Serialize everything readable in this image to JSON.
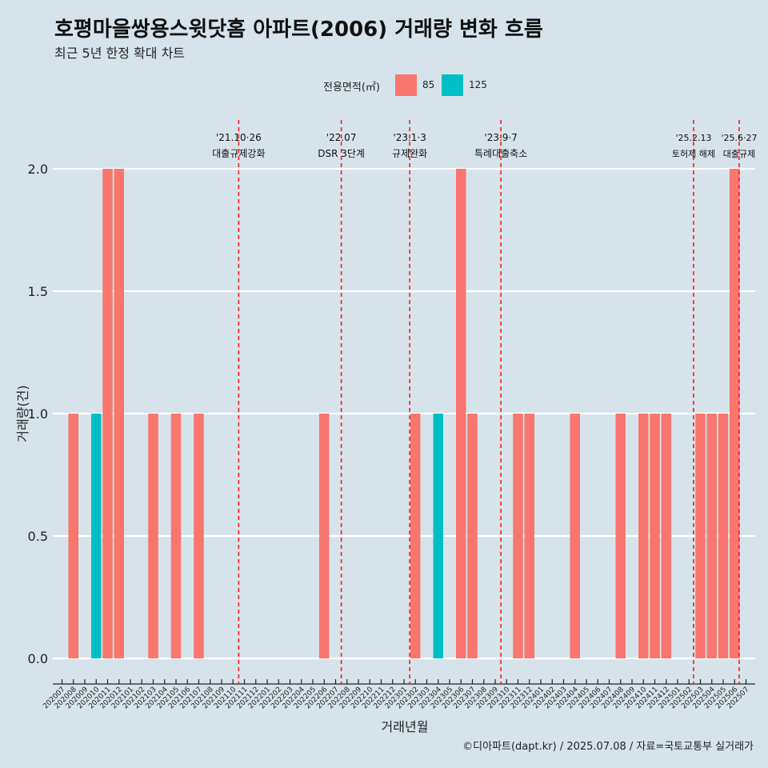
{
  "title": "호평마을쌍용스윗닷홈 아파트(2006) 거래량 변화 흐름",
  "subtitle": "최근 5년 한정 확대 차트",
  "caption": "©디아파트(dapt.kr) / 2025.07.08 / 자료=국토교통부 실거래가",
  "legend": {
    "title": "전용면적(㎡)",
    "items": [
      {
        "label": "85",
        "color": "#f8766d"
      },
      {
        "label": "125",
        "color": "#00bfc4"
      }
    ]
  },
  "chart_data": {
    "type": "bar",
    "title": "호평마을쌍용스윗닷홈 아파트(2006) 거래량 변화 흐름",
    "xlabel": "거래년월",
    "ylabel": "거래량(건)",
    "ylim": [
      0,
      2
    ],
    "yticks": [
      "0.0",
      "0.5",
      "1.0",
      "1.5",
      "2.0"
    ],
    "categories": [
      "202007",
      "202008",
      "202009",
      "202010",
      "202011",
      "202012",
      "202101",
      "202102",
      "202103",
      "202104",
      "202105",
      "202106",
      "202107",
      "202108",
      "202109",
      "202110",
      "202111",
      "202112",
      "202201",
      "202202",
      "202203",
      "202204",
      "202205",
      "202206",
      "202207",
      "202208",
      "202209",
      "202210",
      "202211",
      "202212",
      "202301",
      "202302",
      "202303",
      "202304",
      "202305",
      "202306",
      "202307",
      "202308",
      "202309",
      "202310",
      "202311",
      "202312",
      "202401",
      "202402",
      "202403",
      "202404",
      "202405",
      "202406",
      "202407",
      "202408",
      "202409",
      "202410",
      "202411",
      "202412",
      "202501",
      "202502",
      "202503",
      "202504",
      "202505",
      "202506",
      "202507"
    ],
    "bars": [
      {
        "x": "202008",
        "value": 1,
        "series": "85"
      },
      {
        "x": "202010",
        "value": 1,
        "series": "125"
      },
      {
        "x": "202011",
        "value": 2,
        "series": "85"
      },
      {
        "x": "202012",
        "value": 2,
        "series": "85"
      },
      {
        "x": "202103",
        "value": 1,
        "series": "85"
      },
      {
        "x": "202105",
        "value": 1,
        "series": "85"
      },
      {
        "x": "202107",
        "value": 1,
        "series": "85"
      },
      {
        "x": "202206",
        "value": 1,
        "series": "85"
      },
      {
        "x": "202302",
        "value": 1,
        "series": "85"
      },
      {
        "x": "202304",
        "value": 1,
        "series": "125"
      },
      {
        "x": "202306",
        "value": 2,
        "series": "85"
      },
      {
        "x": "202307",
        "value": 1,
        "series": "85"
      },
      {
        "x": "202311",
        "value": 1,
        "series": "85"
      },
      {
        "x": "202312",
        "value": 1,
        "series": "85"
      },
      {
        "x": "202404",
        "value": 1,
        "series": "85"
      },
      {
        "x": "202408",
        "value": 1,
        "series": "85"
      },
      {
        "x": "202410",
        "value": 1,
        "series": "85"
      },
      {
        "x": "202411",
        "value": 1,
        "series": "85"
      },
      {
        "x": "202412",
        "value": 1,
        "series": "85"
      },
      {
        "x": "202503",
        "value": 1,
        "series": "85"
      },
      {
        "x": "202504",
        "value": 1,
        "series": "85"
      },
      {
        "x": "202505",
        "value": 1,
        "series": "85"
      },
      {
        "x": "202506",
        "value": 2,
        "series": "85"
      }
    ],
    "events": [
      {
        "x": 15.5,
        "date": "'21.10·26",
        "label": "대출규제강화"
      },
      {
        "x": 24.5,
        "date": "'22.07",
        "label": "DSR 3단계"
      },
      {
        "x": 30.5,
        "date": "'23.1·3",
        "label": "규제완화"
      },
      {
        "x": 38.5,
        "date": "'23.9·7",
        "label": "특례대출축소"
      },
      {
        "x": 55.4,
        "date": "'25.2.13",
        "label": "토허제 해제"
      },
      {
        "x": 59.4,
        "date": "'25.6·27",
        "label": "대출규제"
      }
    ]
  }
}
